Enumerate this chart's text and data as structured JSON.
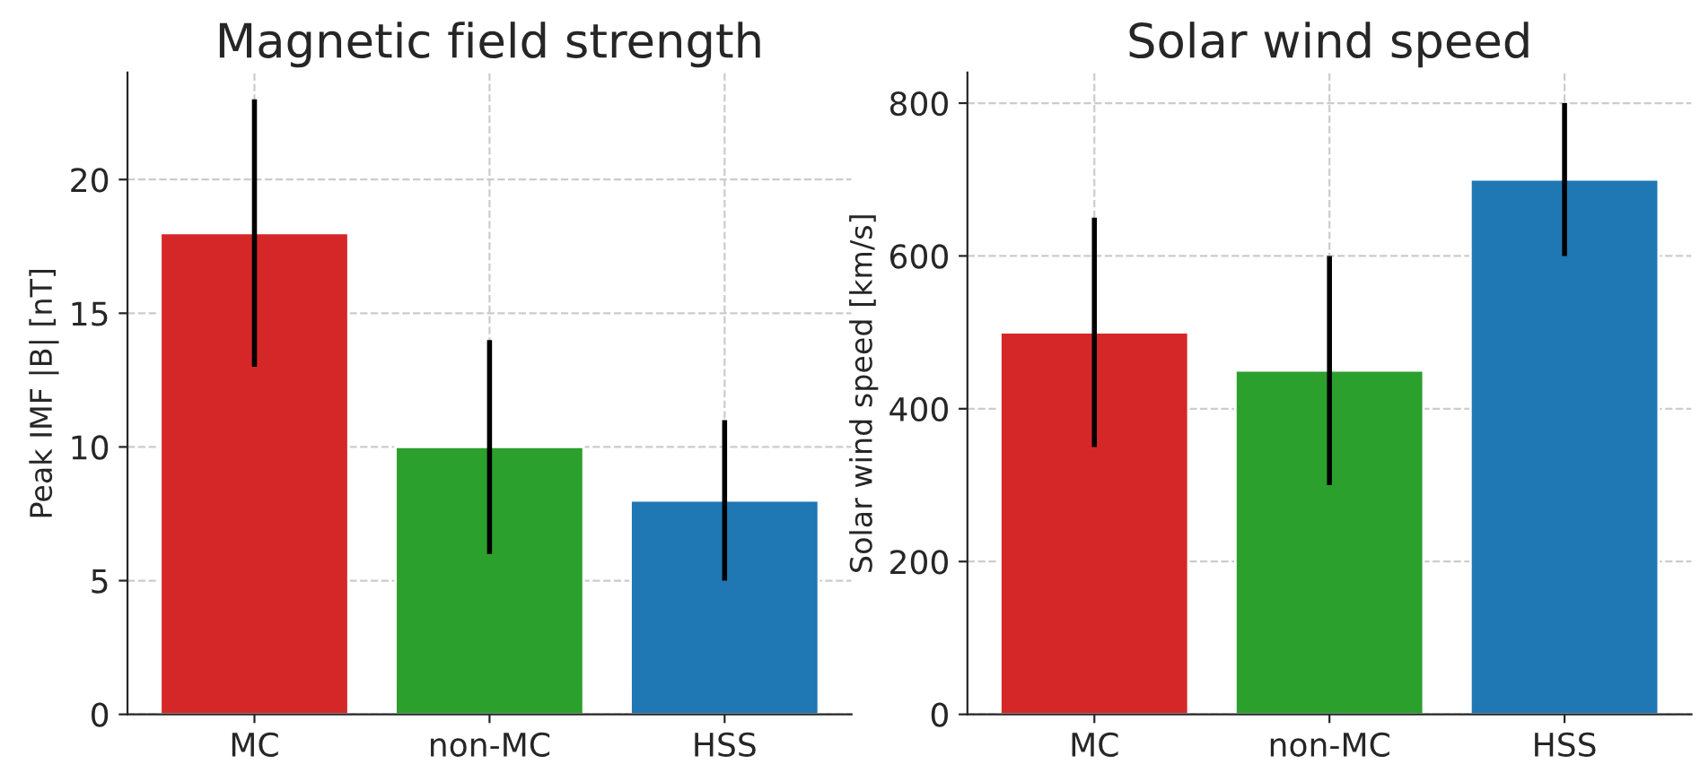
{
  "chart_data": [
    {
      "type": "bar",
      "title": "Magnetic field strength",
      "ylabel": "Peak IMF |B| [nT]",
      "categories": [
        "MC",
        "non-MC",
        "HSS"
      ],
      "values": [
        18,
        10,
        8
      ],
      "colors": [
        "#d62728",
        "#2ca02c",
        "#1f77b4"
      ],
      "errors": [
        5,
        4,
        3
      ],
      "ylim": [
        0,
        24
      ],
      "yticks": [
        0,
        5,
        10,
        15,
        20
      ],
      "grid": true
    },
    {
      "type": "bar",
      "title": "Solar wind speed",
      "ylabel": "Solar wind speed [km/s]",
      "categories": [
        "MC",
        "non-MC",
        "HSS"
      ],
      "values": [
        500,
        450,
        700
      ],
      "colors": [
        "#d62728",
        "#2ca02c",
        "#1f77b4"
      ],
      "errors": [
        150,
        150,
        100
      ],
      "ylim": [
        0,
        840
      ],
      "yticks": [
        0,
        200,
        400,
        600,
        800
      ],
      "grid": true
    }
  ]
}
